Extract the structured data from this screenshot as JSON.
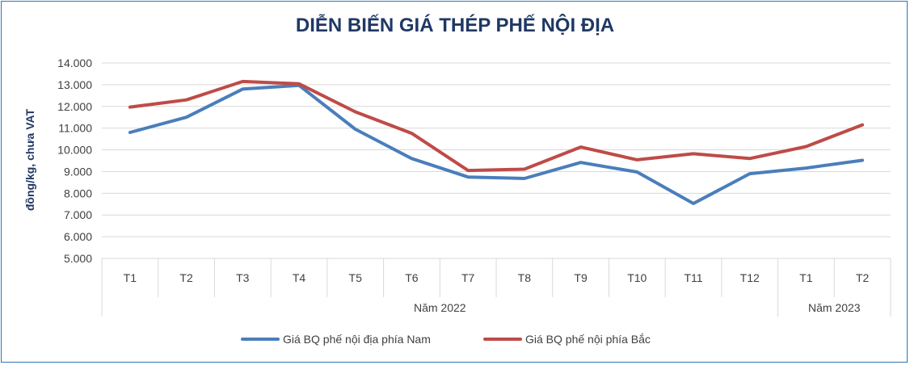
{
  "chart_data": {
    "type": "line",
    "title": "DIỄN BIẾN GIÁ THÉP PHẾ NỘI ĐỊA",
    "ylabel": "đồng/kg, chưa VAT",
    "ylim": [
      5000,
      14000
    ],
    "yticks": [
      "5.000",
      "6.000",
      "7.000",
      "8.000",
      "9.000",
      "10.000",
      "11.000",
      "12.000",
      "13.000",
      "14.000"
    ],
    "categories": [
      "T1",
      "T2",
      "T3",
      "T4",
      "T5",
      "T6",
      "T7",
      "T8",
      "T9",
      "T10",
      "T11",
      "T12",
      "T1",
      "T2"
    ],
    "groups": [
      {
        "label": "Năm 2022",
        "count": 12
      },
      {
        "label": "Năm 2023",
        "count": 2
      }
    ],
    "grid": true,
    "legend_position": "bottom",
    "series": [
      {
        "name": "Giá BQ phế nội địa phía Nam",
        "color": "#4a7ebb",
        "values": [
          10800,
          11500,
          12800,
          12970,
          10950,
          9600,
          8750,
          8680,
          9420,
          8980,
          7530,
          8900,
          9160,
          9520
        ]
      },
      {
        "name": "Giá BQ phế nội phía Bắc",
        "color": "#be4b48",
        "values": [
          11970,
          12300,
          13150,
          13040,
          11750,
          10760,
          9050,
          9110,
          10130,
          9540,
          9820,
          9600,
          10150,
          11150
        ]
      }
    ]
  }
}
